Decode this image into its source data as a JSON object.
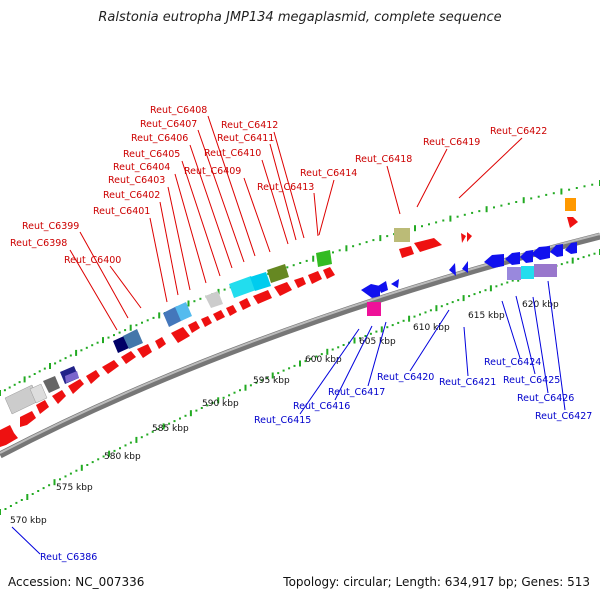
{
  "title": "Ralstonia eutropha JMP134 megaplasmid, complete sequence",
  "footer": {
    "accession": "Accession: NC_007336",
    "topology": "Topology: circular; Length: 634,917 bp; Genes: 513"
  },
  "colors": {
    "forward": "#ee1111",
    "reverse": "#1111ee",
    "tick": "#22aa22"
  },
  "kbp_ticks": [
    "570 kbp",
    "575 kbp",
    "580 kbp",
    "585 kbp",
    "590 kbp",
    "595 kbp",
    "600 kbp",
    "605 kbp",
    "610 kbp",
    "615 kbp",
    "620 kbp"
  ],
  "forward_labels": [
    "Reut_C6398",
    "Reut_C6399",
    "Reut_C6400",
    "Reut_C6401",
    "Reut_C6402",
    "Reut_C6403",
    "Reut_C6404",
    "Reut_C6405",
    "Reut_C6406",
    "Reut_C6407",
    "Reut_C6408",
    "Reut_C6409",
    "Reut_C6410",
    "Reut_C6411",
    "Reut_C6412",
    "Reut_C6413",
    "Reut_C6414",
    "Reut_C6418",
    "Reut_C6419",
    "Reut_C6422"
  ],
  "reverse_labels": [
    "Reut_C6386",
    "Reut_C6415",
    "Reut_C6416",
    "Reut_C6417",
    "Reut_C6420",
    "Reut_C6421",
    "Reut_C6424",
    "Reut_C6425",
    "Reut_C6426",
    "Reut_C6427"
  ]
}
